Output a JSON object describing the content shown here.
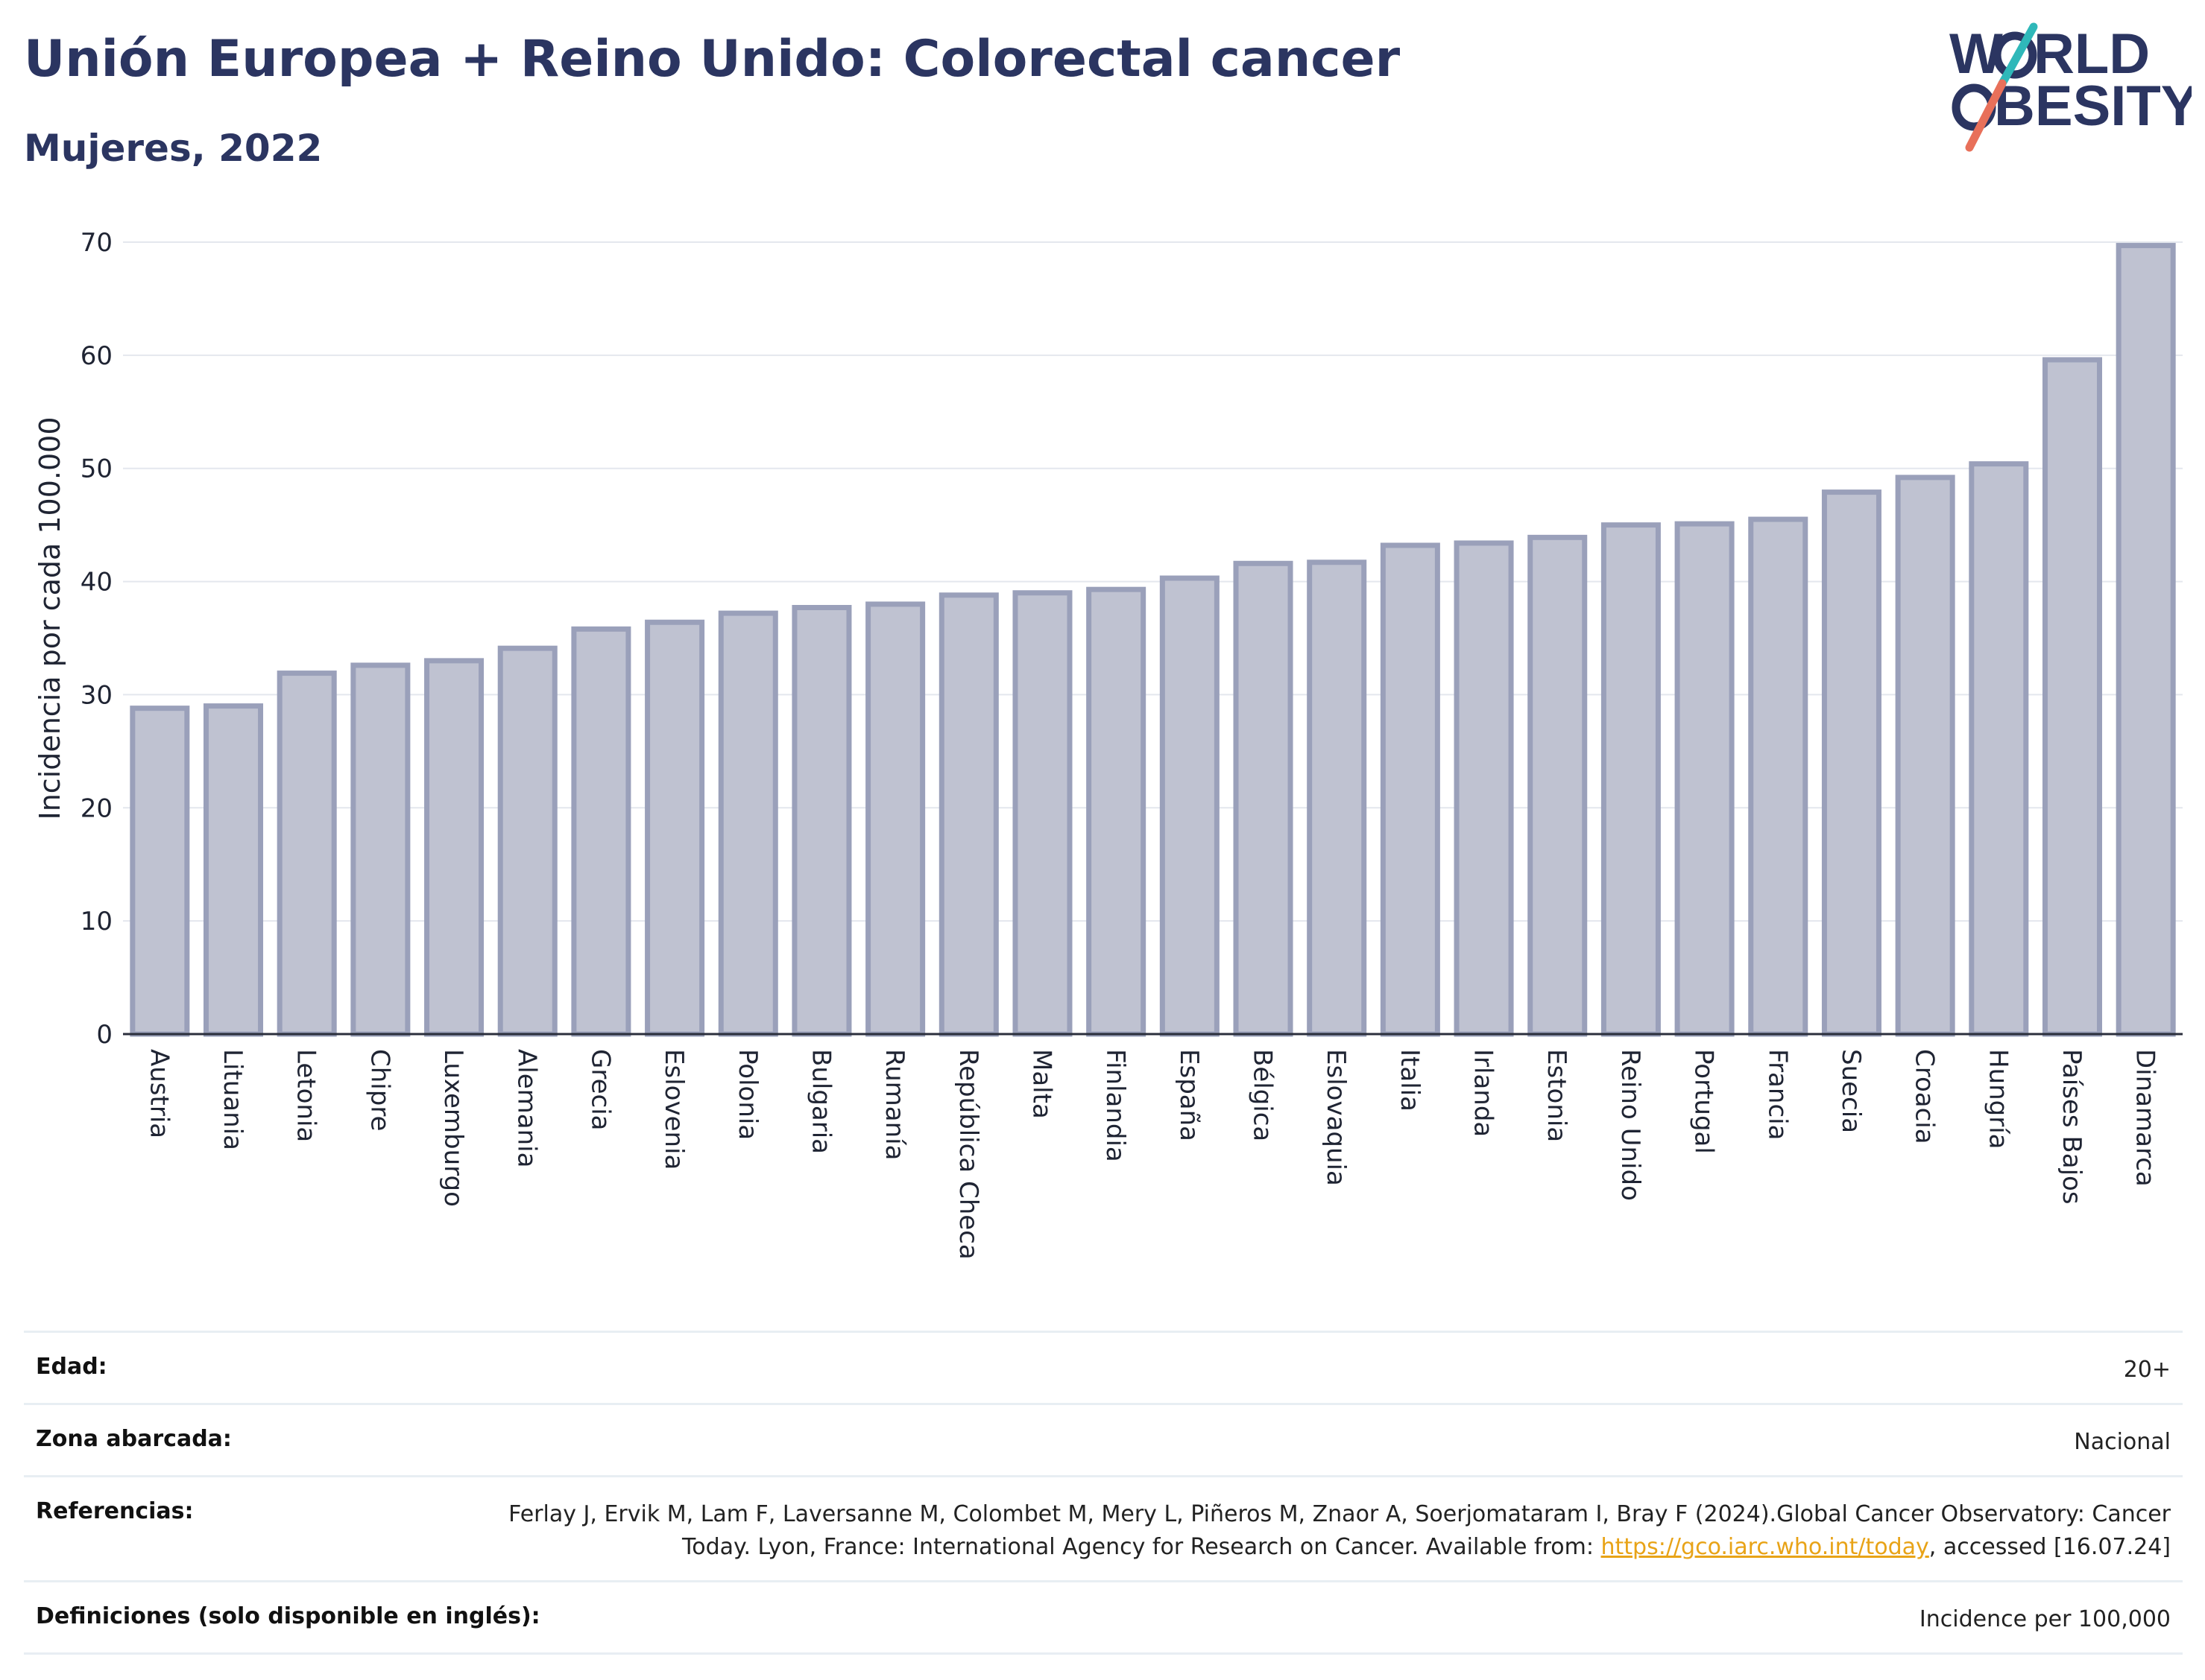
{
  "header": {
    "title": "Unión Europea + Reino Unido: Colorectal cancer",
    "subtitle": "Mujeres, 2022"
  },
  "logo": {
    "line1": "W",
    "line1_rest": "RLD",
    "line2": "BESITY",
    "colors": {
      "navy": "#2b3561",
      "teal": "#2fb8b9",
      "coral": "#e8705a"
    }
  },
  "chart_data": {
    "type": "bar",
    "title": "Unión Europea + Reino Unido: Colorectal cancer",
    "subtitle": "Mujeres, 2022",
    "xlabel": "",
    "ylabel": "Incidencia por cada 100.000",
    "ylim": [
      0,
      70
    ],
    "yticks": [
      0,
      10,
      20,
      30,
      40,
      50,
      60,
      70
    ],
    "grid": true,
    "bar_color": "#bfc2d1",
    "bar_edge_color": "#9aa0ba",
    "categories": [
      "Austria",
      "Lituania",
      "Letonia",
      "Chipre",
      "Luxemburgo",
      "Alemania",
      "Grecia",
      "Eslovenia",
      "Polonia",
      "Bulgaria",
      "Rumanía",
      "República Checa",
      "Malta",
      "Finlandia",
      "España",
      "Bélgica",
      "Eslovaquia",
      "Italia",
      "Irlanda",
      "Estonia",
      "Reino Unido",
      "Portugal",
      "Francia",
      "Suecia",
      "Croacia",
      "Hungría",
      "Países Bajos",
      "Dinamarca"
    ],
    "values": [
      28.8,
      29.0,
      31.9,
      32.6,
      33.0,
      34.1,
      35.8,
      36.4,
      37.2,
      37.7,
      38.0,
      38.8,
      39.0,
      39.3,
      40.3,
      41.6,
      41.7,
      43.2,
      43.4,
      43.9,
      45.0,
      45.1,
      45.5,
      47.9,
      49.2,
      50.4,
      59.6,
      69.7
    ]
  },
  "info": {
    "age_label": "Edad:",
    "age_value": "20+",
    "area_label": "Zona abarcada:",
    "area_value": "Nacional",
    "refs_label": "Referencias:",
    "refs_text": "Ferlay J, Ervik M, Lam F, Laversanne M, Colombet M, Mery L, Piñeros M, Znaor A, Soerjomataram I, Bray F (2024).Global Cancer Observatory: Cancer Today. Lyon, France: International Agency for Research on Cancer. Available from:",
    "refs_link": "https://gco.iarc.who.int/today",
    "refs_tail": ", accessed [16.07.24]",
    "defs_label": "Definiciones (solo disponible en inglés):",
    "defs_value": "Incidence per 100,000"
  }
}
